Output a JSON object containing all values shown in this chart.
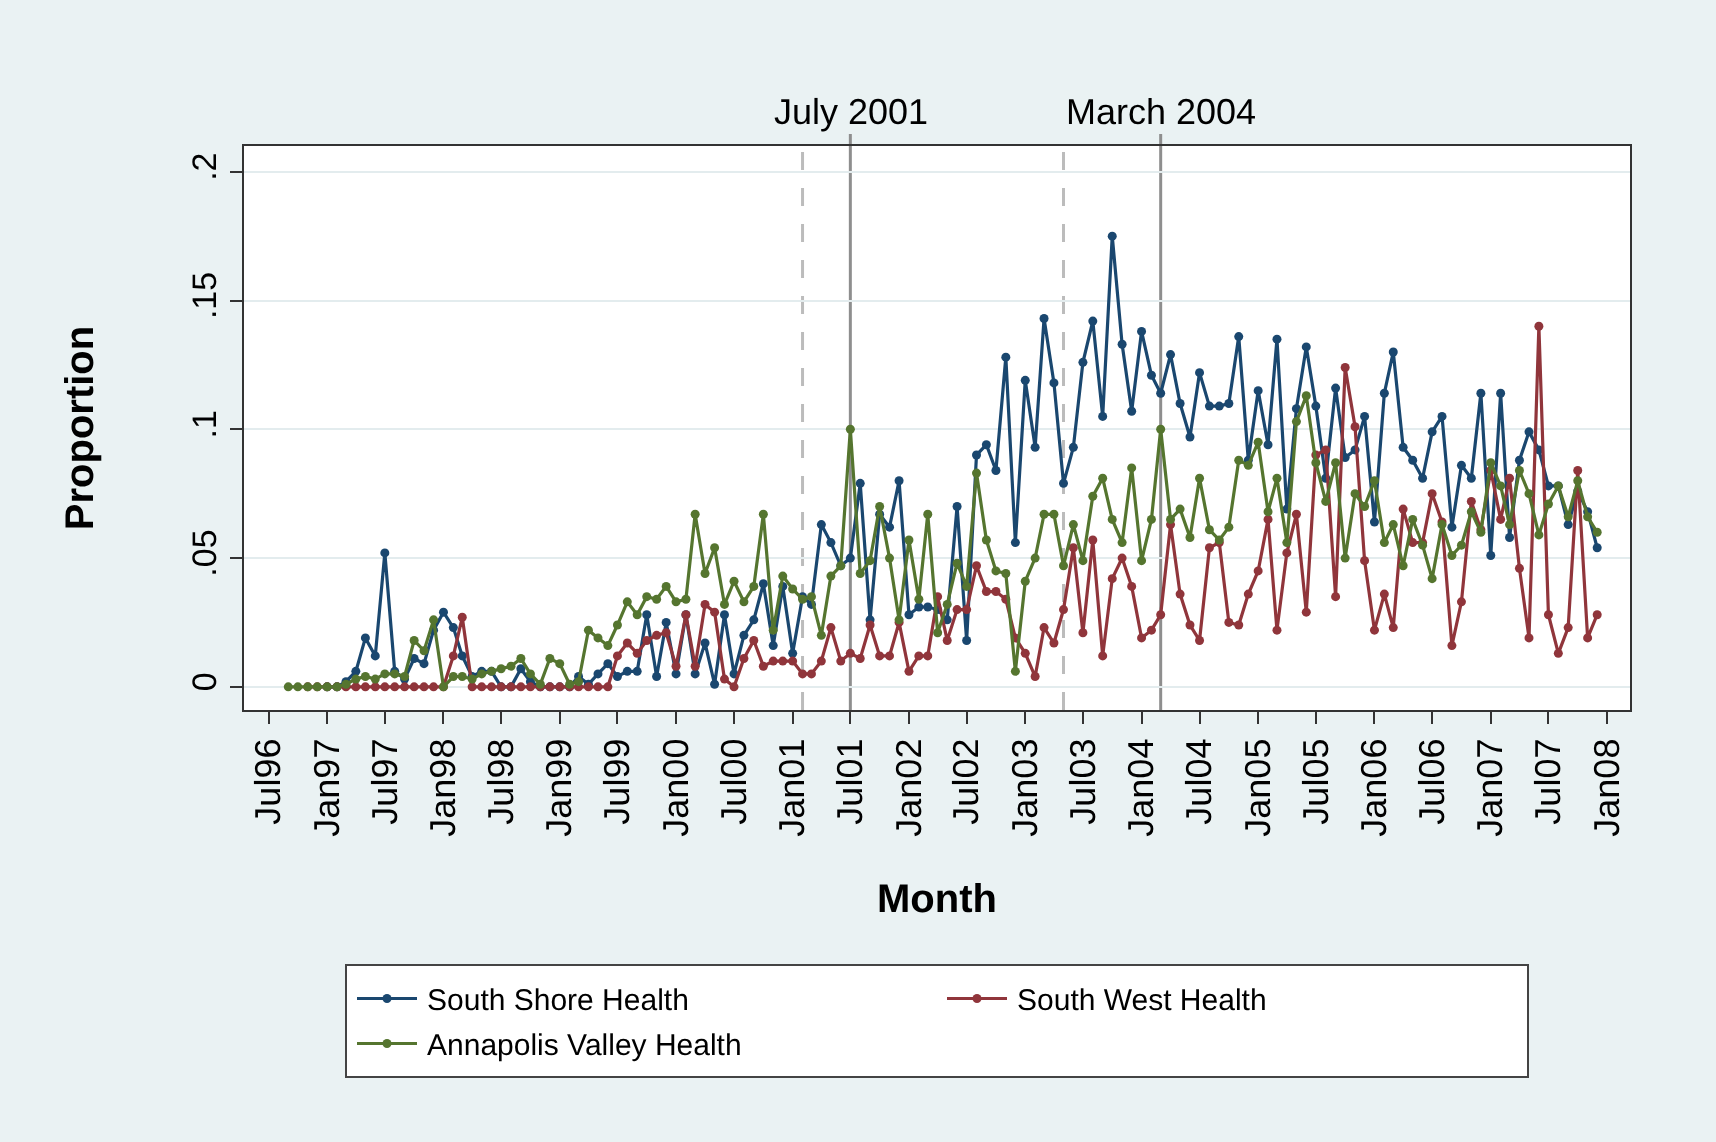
{
  "chart_data": {
    "type": "line",
    "xlabel": "Month",
    "ylabel": "Proportion",
    "x": [
      "1996-09",
      "1996-10",
      "1996-11",
      "1996-12",
      "1997-01",
      "1997-02",
      "1997-03",
      "1997-04",
      "1997-05",
      "1997-06",
      "1997-07",
      "1997-08",
      "1997-09",
      "1997-10",
      "1997-11",
      "1997-12",
      "1998-01",
      "1998-02",
      "1998-03",
      "1998-04",
      "1998-05",
      "1998-06",
      "1998-07",
      "1998-08",
      "1998-09",
      "1998-10",
      "1998-11",
      "1998-12",
      "1999-01",
      "1999-02",
      "1999-03",
      "1999-04",
      "1999-05",
      "1999-06",
      "1999-07",
      "1999-08",
      "1999-09",
      "1999-10",
      "1999-11",
      "1999-12",
      "2000-01",
      "2000-02",
      "2000-03",
      "2000-04",
      "2000-05",
      "2000-06",
      "2000-07",
      "2000-08",
      "2000-09",
      "2000-10",
      "2000-11",
      "2000-12",
      "2001-01",
      "2001-02",
      "2001-03",
      "2001-04",
      "2001-05",
      "2001-06",
      "2001-07",
      "2001-08",
      "2001-09",
      "2001-10",
      "2001-11",
      "2001-12",
      "2002-01",
      "2002-02",
      "2002-03",
      "2002-04",
      "2002-05",
      "2002-06",
      "2002-07",
      "2002-08",
      "2002-09",
      "2002-10",
      "2002-11",
      "2002-12",
      "2003-01",
      "2003-02",
      "2003-03",
      "2003-04",
      "2003-05",
      "2003-06",
      "2003-07",
      "2003-08",
      "2003-09",
      "2003-10",
      "2003-11",
      "2003-12",
      "2004-01",
      "2004-02",
      "2004-03",
      "2004-04",
      "2004-05",
      "2004-06",
      "2004-07",
      "2004-08",
      "2004-09",
      "2004-10",
      "2004-11",
      "2004-12",
      "2005-01",
      "2005-02",
      "2005-03",
      "2005-04",
      "2005-05",
      "2005-06",
      "2005-07",
      "2005-08",
      "2005-09",
      "2005-10",
      "2005-11",
      "2005-12",
      "2006-01",
      "2006-02",
      "2006-03",
      "2006-04",
      "2006-05",
      "2006-06",
      "2006-07",
      "2006-08",
      "2006-09",
      "2006-10",
      "2006-11",
      "2006-12",
      "2007-01",
      "2007-02",
      "2007-03",
      "2007-04",
      "2007-05",
      "2007-06",
      "2007-07",
      "2007-08",
      "2007-09",
      "2007-10",
      "2007-11",
      "2007-12"
    ],
    "series": [
      {
        "name": "South Shore Health",
        "color": "#1a476f",
        "values": [
          null,
          null,
          null,
          null,
          0,
          0,
          0.002,
          0.006,
          0.019,
          0.012,
          0.052,
          0.006,
          0.003,
          0.011,
          0.009,
          0.022,
          0.029,
          0.023,
          0.012,
          0.004,
          0.006,
          0.006,
          0,
          0,
          0.007,
          0.002,
          0,
          0,
          0,
          0,
          0.004,
          0.001,
          0.005,
          0.009,
          0.004,
          0.006,
          0.006,
          0.028,
          0.004,
          0.025,
          0.005,
          0.028,
          0.005,
          0.017,
          0.001,
          0.028,
          0.005,
          0.02,
          0.026,
          0.04,
          0.016,
          0.039,
          0.013,
          0.035,
          0.032,
          0.063,
          0.056,
          0.047,
          0.05,
          0.079,
          0.026,
          0.067,
          0.062,
          0.08,
          0.028,
          0.031,
          0.031,
          0.03,
          0.026,
          0.07,
          0.018,
          0.09,
          0.094,
          0.084,
          0.128,
          0.056,
          0.119,
          0.093,
          0.143,
          0.118,
          0.079,
          0.093,
          0.126,
          0.142,
          0.105,
          0.175,
          0.133,
          0.107,
          0.138,
          0.121,
          0.114,
          0.129,
          0.11,
          0.097,
          0.122,
          0.109,
          0.109,
          0.11,
          0.136,
          0.088,
          0.115,
          0.094,
          0.135,
          0.069,
          0.108,
          0.132,
          0.109,
          0.081,
          0.116,
          0.089,
          0.092,
          0.105,
          0.064,
          0.114,
          0.13,
          0.093,
          0.088,
          0.081,
          0.099,
          0.105,
          0.062,
          0.086,
          0.081,
          0.114,
          0.051,
          0.114,
          0.058,
          0.088,
          0.099,
          0.092,
          0.078,
          0.078,
          0.063,
          0.076,
          0.068,
          0.054
        ]
      },
      {
        "name": "South West Health",
        "color": "#90353b",
        "values": [
          null,
          null,
          0,
          0,
          0,
          0,
          0,
          0,
          0,
          0,
          0,
          0,
          0,
          0,
          0,
          0,
          0,
          0.012,
          0.027,
          0,
          0,
          0,
          0,
          0,
          0,
          0,
          0,
          0,
          0,
          0,
          0,
          0,
          0,
          0,
          0.012,
          0.017,
          0.013,
          0.018,
          0.02,
          0.021,
          0.008,
          0.028,
          0.008,
          0.032,
          0.029,
          0.003,
          0,
          0.011,
          0.018,
          0.008,
          0.01,
          0.01,
          0.01,
          0.005,
          0.005,
          0.01,
          0.023,
          0.01,
          0.013,
          0.011,
          0.024,
          0.012,
          0.012,
          0.025,
          0.006,
          0.012,
          0.012,
          0.035,
          0.018,
          0.03,
          0.03,
          0.047,
          0.037,
          0.037,
          0.034,
          0.019,
          0.013,
          0.004,
          0.023,
          0.017,
          0.03,
          0.054,
          0.021,
          0.057,
          0.012,
          0.042,
          0.05,
          0.039,
          0.019,
          0.022,
          0.028,
          0.063,
          0.036,
          0.024,
          0.018,
          0.054,
          0.056,
          0.025,
          0.024,
          0.036,
          0.045,
          0.065,
          0.022,
          0.052,
          0.067,
          0.029,
          0.09,
          0.092,
          0.035,
          0.124,
          0.101,
          0.049,
          0.022,
          0.036,
          0.023,
          0.069,
          0.056,
          0.056,
          0.075,
          0.064,
          0.016,
          0.033,
          0.072,
          0.061,
          0.084,
          0.065,
          0.081,
          0.046,
          0.019,
          0.14,
          0.028,
          0.013,
          0.023,
          0.084,
          0.019,
          0.028
        ]
      },
      {
        "name": "Annapolis Valley Health",
        "color": "#55752f",
        "values": [
          0,
          0,
          0,
          0,
          0,
          0,
          0.001,
          0.003,
          0.004,
          0.003,
          0.005,
          0.005,
          0.004,
          0.018,
          0.014,
          0.026,
          0,
          0.004,
          0.004,
          0.003,
          0.005,
          0.006,
          0.007,
          0.008,
          0.011,
          0.005,
          0.001,
          0.011,
          0.009,
          0.001,
          0.002,
          0.022,
          0.019,
          0.016,
          0.024,
          0.033,
          0.028,
          0.035,
          0.034,
          0.039,
          0.033,
          0.034,
          0.067,
          0.044,
          0.054,
          0.032,
          0.041,
          0.033,
          0.039,
          0.067,
          0.022,
          0.043,
          0.038,
          0.034,
          0.035,
          0.02,
          0.043,
          0.047,
          0.1,
          0.044,
          0.049,
          0.07,
          0.05,
          0.026,
          0.057,
          0.034,
          0.067,
          0.021,
          0.032,
          0.048,
          0.039,
          0.083,
          0.057,
          0.045,
          0.044,
          0.006,
          0.041,
          0.05,
          0.067,
          0.067,
          0.047,
          0.063,
          0.049,
          0.074,
          0.081,
          0.065,
          0.056,
          0.085,
          0.049,
          0.065,
          0.1,
          0.065,
          0.069,
          0.058,
          0.081,
          0.061,
          0.057,
          0.062,
          0.088,
          0.086,
          0.095,
          0.068,
          0.081,
          0.056,
          0.103,
          0.113,
          0.087,
          0.072,
          0.087,
          0.05,
          0.075,
          0.07,
          0.08,
          0.056,
          0.063,
          0.047,
          0.065,
          0.055,
          0.042,
          0.063,
          0.051,
          0.055,
          0.068,
          0.06,
          0.087,
          0.078,
          0.063,
          0.084,
          0.075,
          0.059,
          0.071,
          0.078,
          0.066,
          0.08,
          0.066,
          0.06
        ]
      }
    ],
    "xlim": [
      "1996-04-15",
      "2008-03-13"
    ],
    "ylim": [
      -0.009,
      0.21
    ],
    "xticks": [
      {
        "value": "1996-07",
        "label": "Jul96"
      },
      {
        "value": "1997-01",
        "label": "Jan97"
      },
      {
        "value": "1997-07",
        "label": "Jul97"
      },
      {
        "value": "1998-01",
        "label": "Jan98"
      },
      {
        "value": "1998-07",
        "label": "Jul98"
      },
      {
        "value": "1999-01",
        "label": "Jan99"
      },
      {
        "value": "1999-07",
        "label": "Jul99"
      },
      {
        "value": "2000-01",
        "label": "Jan00"
      },
      {
        "value": "2000-07",
        "label": "Jul00"
      },
      {
        "value": "2001-01",
        "label": "Jan01"
      },
      {
        "value": "2001-07",
        "label": "Jul01"
      },
      {
        "value": "2002-01",
        "label": "Jan02"
      },
      {
        "value": "2002-07",
        "label": "Jul02"
      },
      {
        "value": "2003-01",
        "label": "Jan03"
      },
      {
        "value": "2003-07",
        "label": "Jul03"
      },
      {
        "value": "2004-01",
        "label": "Jan04"
      },
      {
        "value": "2004-07",
        "label": "Jul04"
      },
      {
        "value": "2005-01",
        "label": "Jan05"
      },
      {
        "value": "2005-07",
        "label": "Jul05"
      },
      {
        "value": "2006-01",
        "label": "Jan06"
      },
      {
        "value": "2006-07",
        "label": "Jul06"
      },
      {
        "value": "2007-01",
        "label": "Jan07"
      },
      {
        "value": "2007-07",
        "label": "Jul07"
      },
      {
        "value": "2008-01",
        "label": "Jan08"
      }
    ],
    "yticks": [
      0,
      {
        "value": 0.05,
        "label": ".05"
      },
      {
        "value": 0.1,
        "label": ".1"
      },
      {
        "value": 0.15,
        "label": ".15"
      },
      {
        "value": 0.2,
        "label": ".2"
      }
    ],
    "ref_lines": [
      {
        "axis": "x",
        "value": "2001-02",
        "color": "#bcbcbc",
        "line_style": "dashed"
      },
      {
        "axis": "x",
        "value": "2001-07",
        "label": "July 2001",
        "color": "#8e8e8e",
        "line_style": "solid"
      },
      {
        "axis": "x",
        "value": "2003-05",
        "color": "#bcbcbc",
        "line_style": "dashed"
      },
      {
        "axis": "x",
        "value": "2004-03",
        "label": "March 2004",
        "color": "#8e8e8e",
        "line_style": "solid"
      }
    ],
    "grid": "y",
    "legend": "bottom",
    "marker": "circle",
    "line_style": "solid"
  }
}
